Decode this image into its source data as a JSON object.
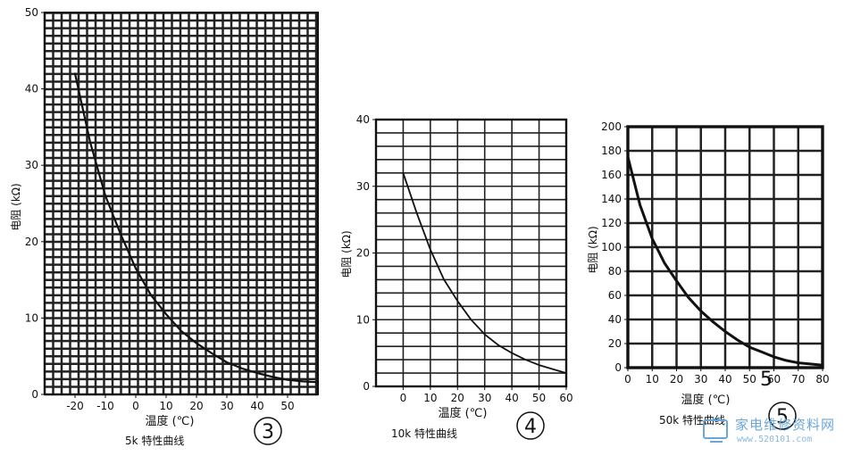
{
  "chart_data": [
    {
      "type": "line",
      "number_label": "3",
      "caption": "5k 特性曲线",
      "xlabel": "温度 (℃)",
      "ylabel": "电阻 (kΩ)",
      "xlim": [
        -30,
        60
      ],
      "ylim": [
        0,
        50
      ],
      "xticks": [
        -20,
        -10,
        0,
        10,
        20,
        30,
        40,
        50
      ],
      "yticks": [
        0,
        10,
        20,
        30,
        40,
        50
      ],
      "grid": true,
      "grid_dense": true,
      "series": [
        {
          "x": [
            -20,
            -15,
            -10,
            -5,
            0,
            5,
            10,
            15,
            20,
            25,
            30,
            35,
            40,
            45,
            50,
            55,
            60
          ],
          "y": [
            42,
            33,
            26,
            21,
            16.5,
            13,
            10.5,
            8.3,
            6.7,
            5.4,
            4.2,
            3.4,
            2.8,
            2.3,
            1.9,
            1.7,
            1.6
          ]
        }
      ]
    },
    {
      "type": "line",
      "number_label": "4",
      "caption": "10k 特性曲线",
      "xlabel": "温度 (℃)",
      "ylabel": "电阻 (kΩ)",
      "xlim": [
        -10,
        60
      ],
      "ylim": [
        0,
        40
      ],
      "xticks": [
        0,
        10,
        20,
        30,
        40,
        50,
        60
      ],
      "yticks": [
        0,
        10,
        20,
        30,
        40
      ],
      "grid": true,
      "grid_dense": false,
      "series": [
        {
          "x": [
            0,
            5,
            10,
            15,
            20,
            25,
            30,
            35,
            40,
            45,
            50,
            55,
            60
          ],
          "y": [
            32,
            26,
            20.5,
            16,
            12.8,
            10,
            7.8,
            6.2,
            5,
            4,
            3.2,
            2.6,
            2
          ]
        }
      ]
    },
    {
      "type": "line",
      "number_label": "5",
      "caption": "50k 特性曲线",
      "xlabel": "温度 (℃)",
      "ylabel": "电阻 (kΩ)",
      "xlim": [
        0,
        80
      ],
      "ylim": [
        0,
        200
      ],
      "xticks": [
        0,
        10,
        20,
        30,
        40,
        50,
        60,
        70,
        80
      ],
      "yticks": [
        0,
        20,
        40,
        60,
        80,
        100,
        120,
        140,
        160,
        180,
        200
      ],
      "grid": true,
      "grid_dense": false,
      "series": [
        {
          "x": [
            0,
            5,
            10,
            15,
            20,
            25,
            30,
            35,
            40,
            45,
            50,
            55,
            60,
            65,
            70,
            75,
            80
          ],
          "y": [
            175,
            135,
            107,
            87,
            72,
            58,
            47,
            38,
            30,
            23,
            17,
            13,
            9,
            6,
            4,
            3,
            2
          ]
        }
      ]
    }
  ],
  "extra_label": "5",
  "watermark": {
    "text": "家电维修资料网",
    "url": "www.520101.com"
  },
  "colors": {
    "ink": "#111111",
    "grid": "#222222",
    "watermark": "#6aa6d8"
  }
}
